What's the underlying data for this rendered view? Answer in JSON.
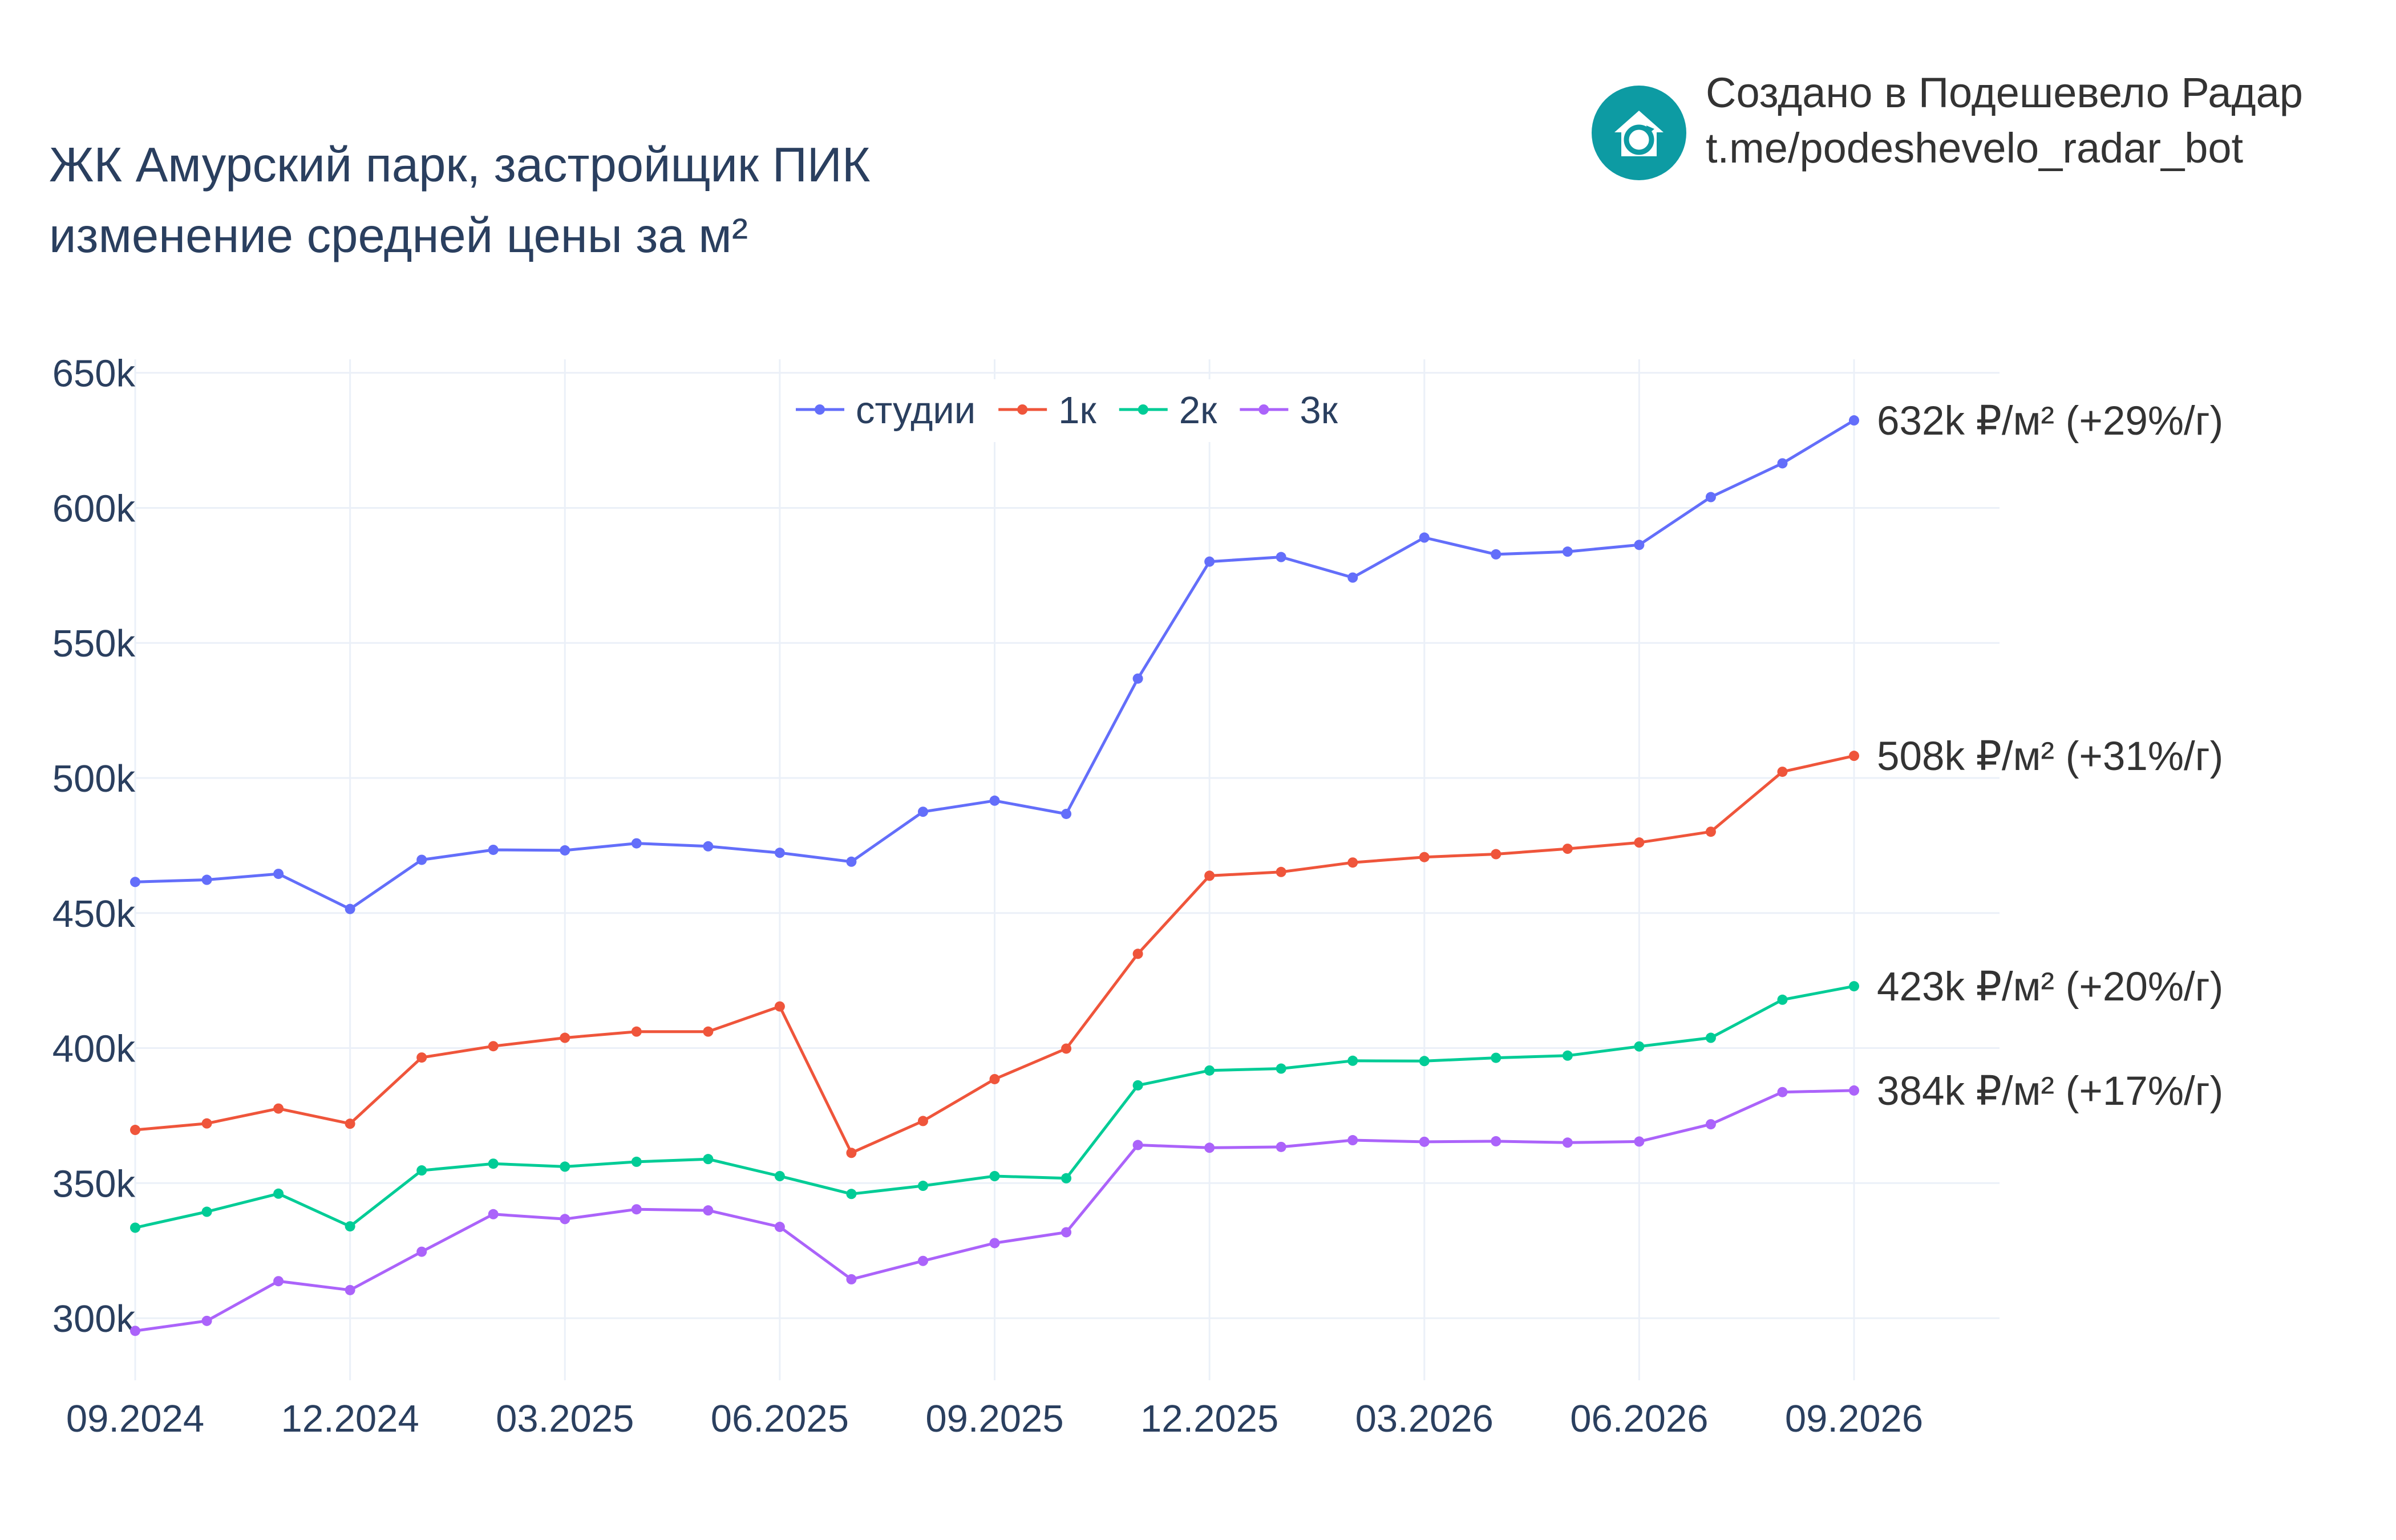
{
  "title_lines": [
    "ЖК Амурский парк, застройщик ПИК",
    "изменение средней цены за м²"
  ],
  "branding": {
    "line1": "Создано в Подешевело Радар",
    "line2": "t.me/podeshevelo_radar_bot",
    "logo_icon": "house-refresh-icon",
    "logo_color": "#0d9ba3"
  },
  "chart_data": {
    "type": "line",
    "title": "ЖК Амурский парк, застройщик ПИК изменение средней цены за м²",
    "xlabel": "",
    "ylabel": "",
    "x": [
      "2024-09",
      "2024-10",
      "2024-11",
      "2024-12",
      "2025-01",
      "2025-02",
      "2025-03",
      "2025-04",
      "2025-05",
      "2025-06",
      "2025-07",
      "2025-08",
      "2025-09",
      "2025-10",
      "2025-11",
      "2025-12",
      "2026-01",
      "2026-02",
      "2026-03",
      "2026-04",
      "2026-05",
      "2026-06",
      "2026-07",
      "2026-08",
      "2026-09"
    ],
    "x_ticks": [
      "09.2024",
      "12.2024",
      "03.2025",
      "06.2025",
      "09.2025",
      "12.2025",
      "03.2026",
      "06.2026",
      "09.2026"
    ],
    "y_ticks": [
      "300k",
      "350k",
      "400k",
      "450k",
      "500k",
      "550k",
      "600k",
      "650k"
    ],
    "ylim": [
      277000,
      655000
    ],
    "grid": true,
    "legend_position": "top-center",
    "series": [
      {
        "name": "студии",
        "color": "#636efa",
        "end_label": "632k ₽/м² (+29%/г)",
        "values": [
          461500,
          462300,
          464500,
          451500,
          469700,
          473400,
          473200,
          475800,
          474700,
          472300,
          469000,
          487500,
          491600,
          486700,
          536800,
          580100,
          581800,
          574200,
          589000,
          582800,
          583800,
          586300,
          604000,
          616500,
          632400
        ]
      },
      {
        "name": "1к",
        "color": "#ef553b",
        "end_label": "508k ₽/м² (+31%/г)",
        "values": [
          369700,
          372100,
          377600,
          372000,
          396500,
          400700,
          403800,
          406100,
          406100,
          415400,
          361200,
          373000,
          388500,
          399800,
          434900,
          463800,
          465200,
          468700,
          470700,
          471800,
          473800,
          476100,
          480100,
          502300,
          508200
        ]
      },
      {
        "name": "2к",
        "color": "#00cc96",
        "end_label": "423k ₽/м² (+20%/г)",
        "values": [
          333500,
          339400,
          346100,
          334000,
          354700,
          357200,
          356100,
          357900,
          358900,
          352600,
          346000,
          349000,
          352600,
          351800,
          386200,
          391700,
          392400,
          395300,
          395200,
          396400,
          397200,
          400600,
          403800,
          417900,
          422900
        ]
      },
      {
        "name": "3к",
        "color": "#ab63fa",
        "end_label": "384k ₽/м² (+17%/г)",
        "values": [
          295300,
          299000,
          313700,
          310400,
          324600,
          338500,
          336700,
          340300,
          339900,
          333800,
          314400,
          321200,
          327800,
          331800,
          364100,
          363100,
          363400,
          365900,
          365300,
          365500,
          365000,
          365400,
          371800,
          383700,
          384300
        ]
      }
    ]
  }
}
